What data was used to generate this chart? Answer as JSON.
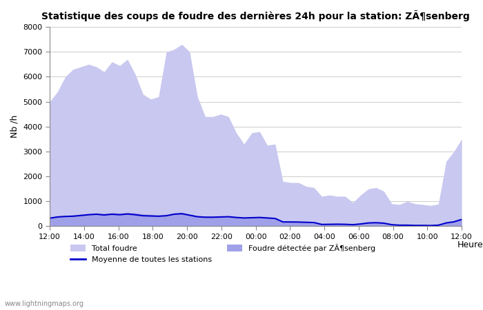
{
  "title": "Statistique des coups de foudre des dernières 24h pour la station: ZÃ¶senberg",
  "xlabel": "Heure",
  "ylabel": "Nb /h",
  "ylim": [
    0,
    8000
  ],
  "yticks": [
    0,
    1000,
    2000,
    3000,
    4000,
    5000,
    6000,
    7000,
    8000
  ],
  "xtick_labels": [
    "12:00",
    "14:00",
    "16:00",
    "18:00",
    "20:00",
    "22:00",
    "00:00",
    "02:00",
    "04:00",
    "06:00",
    "08:00",
    "10:00",
    "12:00"
  ],
  "watermark": "www.lightningmaps.org",
  "legend1_label": "Total foudre",
  "legend2_label": "Moyenne de toutes les stations",
  "legend3_label": "Foudre détectée par ZÃ¶senberg",
  "total_foudre_color": "#c8c8f0",
  "local_foudre_color": "#a0a0e8",
  "moyenne_color": "#0000cc",
  "background_color": "#ffffff",
  "plot_bg_color": "#ffffff",
  "grid_color": "#cccccc",
  "total_foudre": [
    5000,
    5400,
    6000,
    6300,
    6400,
    6500,
    6400,
    6200,
    6600,
    6450,
    6700,
    6100,
    5300,
    5100,
    5200,
    7000,
    7100,
    7300,
    7000,
    5200,
    4400,
    4400,
    4500,
    4400,
    3750,
    3300,
    3750,
    3800,
    3250,
    3300,
    1800,
    1750,
    1750,
    1600,
    1550,
    1200,
    1250,
    1200,
    1200,
    950,
    1250,
    1500,
    1550,
    1400,
    900,
    870,
    1000,
    900,
    870,
    830,
    890,
    2600,
    3000,
    3500
  ],
  "local_foudre": [
    350,
    400,
    430,
    450,
    480,
    510,
    530,
    510,
    540,
    520,
    550,
    530,
    490,
    470,
    440,
    460,
    530,
    560,
    480,
    420,
    400,
    390,
    400,
    410,
    380,
    360,
    370,
    380,
    360,
    330,
    200,
    190,
    180,
    170,
    160,
    80,
    80,
    90,
    80,
    70,
    100,
    150,
    160,
    140,
    70,
    50,
    50,
    40,
    40,
    30,
    50,
    150,
    200,
    300
  ],
  "moyenne": [
    320,
    370,
    390,
    400,
    430,
    460,
    480,
    450,
    480,
    460,
    490,
    460,
    420,
    410,
    400,
    420,
    480,
    500,
    440,
    380,
    360,
    360,
    370,
    380,
    350,
    330,
    340,
    350,
    330,
    310,
    170,
    170,
    165,
    155,
    145,
    70,
    75,
    80,
    75,
    60,
    90,
    130,
    140,
    120,
    60,
    40,
    40,
    30,
    30,
    25,
    40,
    130,
    175,
    270
  ]
}
